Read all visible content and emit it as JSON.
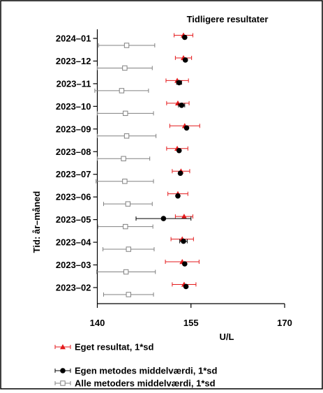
{
  "chart_data": {
    "type": "scatter",
    "title": "Tidligere resultater",
    "xlabel": "U/L",
    "ylabel": "Tid: år–måned",
    "xlim": [
      140,
      170
    ],
    "xticks": [
      140,
      155,
      170
    ],
    "grid": false,
    "legend_position": "bottom-left",
    "categories": [
      "2024–01",
      "2023–12",
      "2023–11",
      "2023–10",
      "2023–09",
      "2023–08",
      "2023–07",
      "2023–06",
      "2023–05",
      "2023–04",
      "2023–03",
      "2023–02"
    ],
    "series": [
      {
        "name": "Eget resultat, 1*sd",
        "marker": "triangle",
        "color": "#e41a1c",
        "values": [
          153.8,
          153.8,
          152.8,
          152.9,
          154.0,
          152.8,
          153.4,
          152.9,
          153.9,
          153.6,
          153.6,
          153.9
        ],
        "sd": [
          1.5,
          1.3,
          1.8,
          1.8,
          2.4,
          1.7,
          1.4,
          1.6,
          1.4,
          1.8,
          2.7,
          1.9
        ]
      },
      {
        "name": "Egen metodes middelværdi, 1*sd",
        "marker": "circle",
        "color": "#000000",
        "values": [
          154.0,
          154.1,
          153.1,
          153.5,
          154.3,
          153.1,
          153.3,
          152.9,
          150.6,
          153.8,
          154.0,
          154.2
        ],
        "sd": [
          0.2,
          0.2,
          0.4,
          0.5,
          0.2,
          0.2,
          0.2,
          0.2,
          4.4,
          0.6,
          0.2,
          0.2
        ]
      },
      {
        "name": "Alle metoders middelværdi, 1*sd",
        "marker": "square",
        "color": "#808080",
        "values": [
          144.7,
          144.4,
          143.9,
          144.5,
          144.7,
          144.2,
          144.4,
          144.9,
          144.5,
          145.0,
          144.6,
          145.0
        ],
        "sd": [
          4.5,
          4.4,
          4.3,
          4.5,
          4.7,
          4.2,
          4.6,
          3.9,
          4.4,
          4.1,
          4.7,
          4.0
        ]
      }
    ]
  }
}
